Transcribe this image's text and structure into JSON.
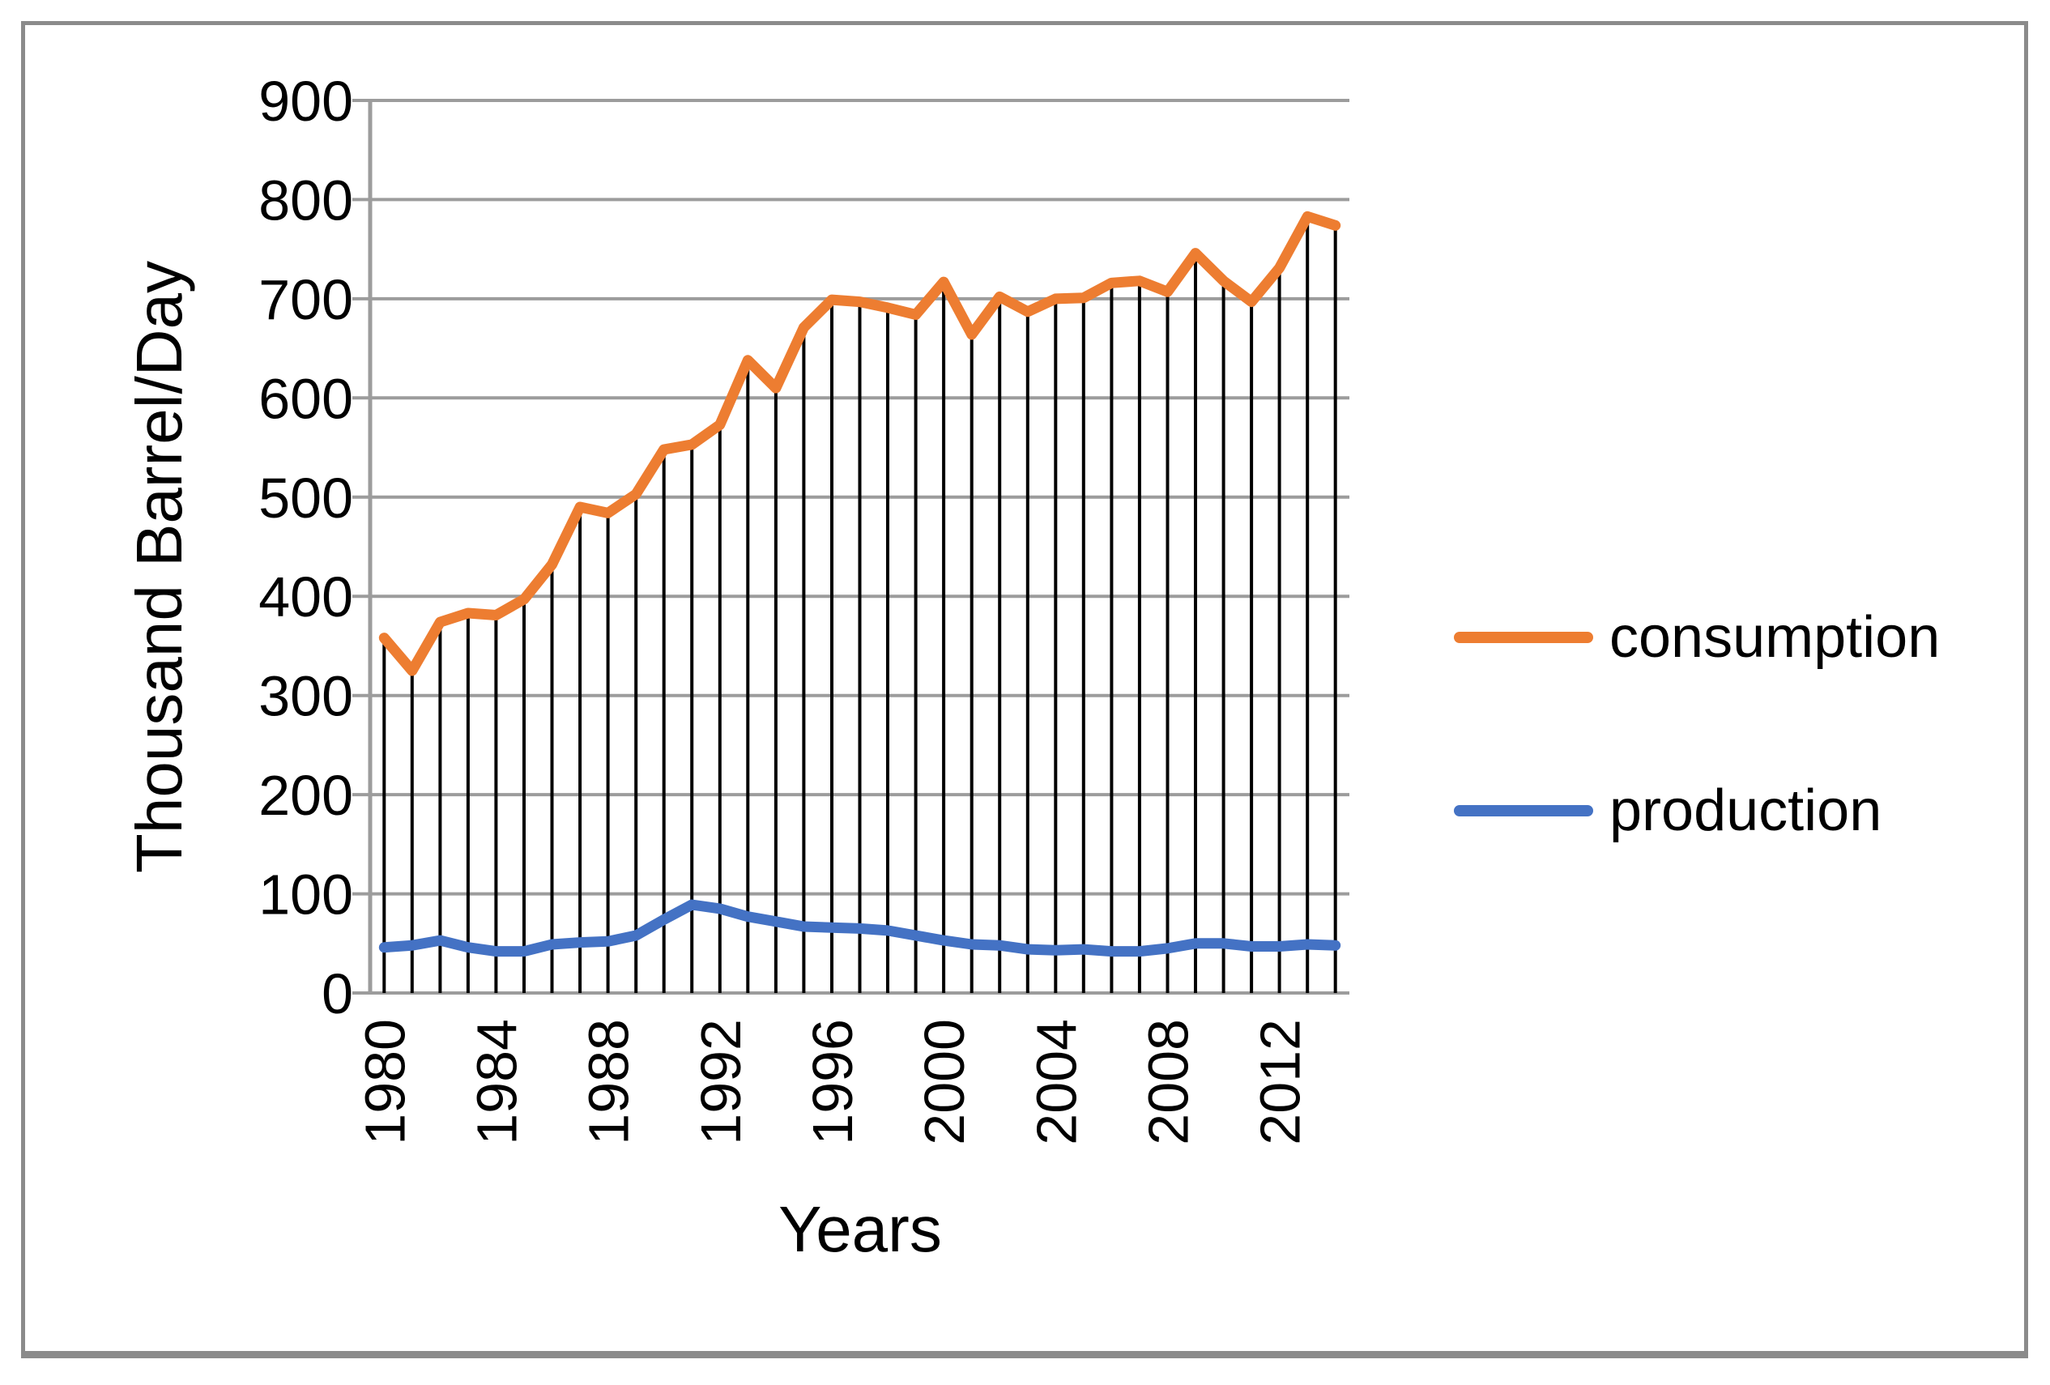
{
  "chart": {
    "y_axis_title": "Thousand Barrel/Day",
    "x_axis_title": "Years",
    "background_color": "#ffffff",
    "frame_color": "#8b8b8b",
    "gridline_color": "#9c9c9c",
    "dropline_color": "#000000",
    "legend": {
      "position": "right-middle",
      "items": [
        {
          "label": "consumption",
          "color": "#ED7D31"
        },
        {
          "label": "production",
          "color": "#4472C4"
        }
      ]
    }
  },
  "chart_data": {
    "type": "line",
    "title": "",
    "xlabel": "Years",
    "ylabel": "Thousand Barrel/Day",
    "ylim": [
      0,
      900
    ],
    "yticks": [
      0,
      100,
      200,
      300,
      400,
      500,
      600,
      700,
      800,
      900
    ],
    "xticks": [
      1980,
      1984,
      1988,
      1992,
      1996,
      2000,
      2004,
      2008,
      2012
    ],
    "grid": "horizontal",
    "drop_lines": "from-consumption-to-axis",
    "x": [
      1980,
      1981,
      1982,
      1983,
      1984,
      1985,
      1986,
      1987,
      1988,
      1989,
      1990,
      1991,
      1992,
      1993,
      1994,
      1995,
      1996,
      1997,
      1998,
      1999,
      2000,
      2001,
      2002,
      2003,
      2004,
      2005,
      2006,
      2007,
      2008,
      2009,
      2010,
      2011,
      2012,
      2013,
      2014
    ],
    "series": [
      {
        "name": "consumption",
        "color": "#ED7D31",
        "values": [
          358,
          325,
          374,
          383,
          381,
          397,
          432,
          490,
          484,
          503,
          548,
          553,
          573,
          638,
          610,
          671,
          699,
          697,
          691,
          684,
          717,
          664,
          702,
          687,
          700,
          701,
          716,
          718,
          707,
          746,
          718,
          697,
          731,
          783,
          774
        ]
      },
      {
        "name": "production",
        "color": "#4472C4",
        "values": [
          46,
          48,
          53,
          46,
          42,
          42,
          49,
          51,
          52,
          58,
          74,
          89,
          85,
          77,
          72,
          67,
          66,
          65,
          63,
          58,
          53,
          49,
          48,
          44,
          43,
          44,
          42,
          42,
          45,
          50,
          50,
          47,
          47,
          49,
          48
        ]
      }
    ]
  }
}
